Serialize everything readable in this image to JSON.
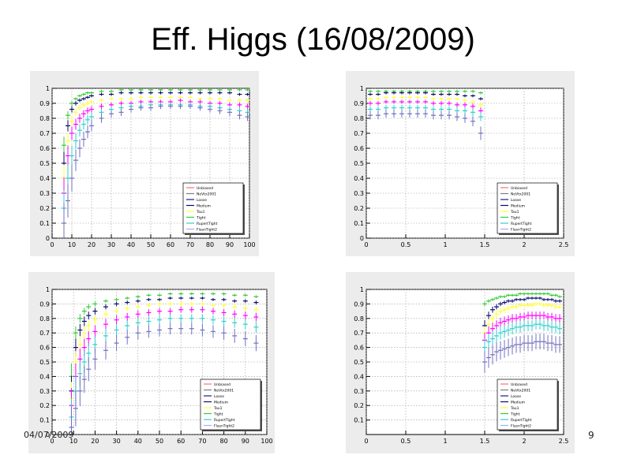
{
  "slide": {
    "title": "Eff. Higgs (16/08/2009)",
    "footer_date": "04/07/2009",
    "page_number": "9"
  },
  "legend_entries": [
    "Unbiased",
    "NoVtx2001",
    "Loose",
    "Medium",
    "Tau1",
    "Tight",
    "RupertTight",
    "FlasnTight2"
  ],
  "series_colors": [
    "#ff6e6e",
    "#7d7d7d",
    "#1a1a8c",
    "#0a0a6e",
    "#ffff33",
    "#33cc33",
    "#33cccc",
    "#aaaaff"
  ],
  "chart_data": [
    {
      "type": "scatter",
      "name": "eff-vs-pt-top",
      "xlim": [
        0,
        100
      ],
      "ylim": [
        0,
        1
      ],
      "xticks": [
        0,
        10,
        20,
        30,
        40,
        50,
        60,
        70,
        80,
        90,
        100
      ],
      "yticks": [
        0,
        0.1,
        0.2,
        0.3,
        0.4,
        0.5,
        0.6,
        0.7,
        0.8,
        0.9,
        1
      ],
      "xtick_labels": [
        "0",
        "10",
        "20",
        "30",
        "40",
        "50",
        "60",
        "70",
        "80",
        "90",
        "100"
      ],
      "ytick_labels": [
        "0",
        "0.1",
        "0.2",
        "0.3",
        "0.4",
        "0.5",
        "0.6",
        "0.7",
        "0.8",
        "0.9",
        "1"
      ],
      "grid": true,
      "legend": "bottom-right",
      "x": [
        6,
        8,
        10,
        12,
        14,
        16,
        18,
        20,
        25,
        30,
        35,
        40,
        45,
        50,
        55,
        60,
        65,
        70,
        75,
        80,
        85,
        90,
        95,
        99
      ],
      "series": [
        {
          "name": "Tight",
          "color": "#33cc33",
          "values": [
            0.62,
            0.82,
            0.9,
            0.93,
            0.95,
            0.96,
            0.97,
            0.97,
            0.98,
            0.98,
            0.99,
            0.99,
            0.99,
            0.99,
            0.99,
            0.99,
            0.99,
            0.99,
            0.99,
            0.99,
            0.99,
            0.99,
            0.99,
            0.99
          ]
        },
        {
          "name": "Medium",
          "color": "#0a0a6e",
          "values": [
            0.5,
            0.75,
            0.86,
            0.9,
            0.92,
            0.93,
            0.94,
            0.95,
            0.96,
            0.96,
            0.97,
            0.97,
            0.97,
            0.97,
            0.97,
            0.97,
            0.97,
            0.97,
            0.97,
            0.97,
            0.97,
            0.97,
            0.96,
            0.96
          ]
        },
        {
          "name": "Tau1",
          "color": "#ffff33",
          "values": [
            0.4,
            0.65,
            0.78,
            0.84,
            0.87,
            0.89,
            0.9,
            0.91,
            0.92,
            0.93,
            0.93,
            0.93,
            0.94,
            0.94,
            0.94,
            0.94,
            0.94,
            0.94,
            0.93,
            0.93,
            0.93,
            0.92,
            0.92,
            0.92
          ]
        },
        {
          "name": "Unbiased",
          "color": "#ff00ff",
          "values": [
            0.3,
            0.55,
            0.7,
            0.76,
            0.8,
            0.83,
            0.85,
            0.86,
            0.88,
            0.89,
            0.9,
            0.9,
            0.91,
            0.91,
            0.91,
            0.91,
            0.92,
            0.91,
            0.91,
            0.9,
            0.9,
            0.89,
            0.89,
            0.88
          ]
        },
        {
          "name": "RupertTight",
          "color": "#33cccc",
          "values": [
            0.2,
            0.4,
            0.55,
            0.65,
            0.72,
            0.76,
            0.79,
            0.81,
            0.84,
            0.86,
            0.87,
            0.88,
            0.88,
            0.89,
            0.89,
            0.89,
            0.89,
            0.89,
            0.88,
            0.88,
            0.87,
            0.86,
            0.85,
            0.84
          ]
        },
        {
          "name": "FlasnTight2",
          "color": "#7070c0",
          "values": [
            0.1,
            0.25,
            0.4,
            0.52,
            0.6,
            0.66,
            0.71,
            0.75,
            0.8,
            0.83,
            0.84,
            0.86,
            0.87,
            0.87,
            0.88,
            0.88,
            0.88,
            0.88,
            0.87,
            0.86,
            0.85,
            0.84,
            0.82,
            0.81
          ]
        }
      ]
    },
    {
      "type": "scatter",
      "name": "eff-vs-eta-top",
      "xlim": [
        0,
        2.5
      ],
      "ylim": [
        0,
        1
      ],
      "xticks": [
        0,
        0.5,
        1,
        1.5,
        2,
        2.5
      ],
      "yticks": [
        0,
        0.1,
        0.2,
        0.3,
        0.4,
        0.5,
        0.6,
        0.7,
        0.8,
        0.9,
        1
      ],
      "xtick_labels": [
        "0",
        "0.5",
        "1",
        "1.5",
        "2",
        "2.5"
      ],
      "ytick_labels": [
        "0",
        "0.1",
        "0.2",
        "0.3",
        "0.4",
        "0.5",
        "0.6",
        "0.7",
        "0.8",
        "0.9",
        "1"
      ],
      "grid": true,
      "legend": "bottom-right",
      "x": [
        0.05,
        0.15,
        0.25,
        0.35,
        0.45,
        0.55,
        0.65,
        0.75,
        0.85,
        0.95,
        1.05,
        1.15,
        1.25,
        1.35,
        1.45
      ],
      "series": [
        {
          "name": "Tight",
          "color": "#33cc33",
          "values": [
            0.98,
            0.98,
            0.98,
            0.98,
            0.98,
            0.98,
            0.98,
            0.98,
            0.98,
            0.98,
            0.98,
            0.98,
            0.98,
            0.98,
            0.97
          ]
        },
        {
          "name": "Medium",
          "color": "#0a0a6e",
          "values": [
            0.96,
            0.96,
            0.97,
            0.97,
            0.97,
            0.97,
            0.97,
            0.97,
            0.96,
            0.96,
            0.96,
            0.96,
            0.95,
            0.95,
            0.93
          ]
        },
        {
          "name": "Tau1",
          "color": "#ffff33",
          "values": [
            0.93,
            0.93,
            0.94,
            0.94,
            0.94,
            0.94,
            0.94,
            0.94,
            0.93,
            0.93,
            0.93,
            0.93,
            0.92,
            0.91,
            0.89
          ]
        },
        {
          "name": "Unbiased",
          "color": "#ff00ff",
          "values": [
            0.9,
            0.9,
            0.91,
            0.91,
            0.91,
            0.91,
            0.91,
            0.91,
            0.9,
            0.9,
            0.9,
            0.89,
            0.89,
            0.88,
            0.85
          ]
        },
        {
          "name": "RupertTight",
          "color": "#33cccc",
          "values": [
            0.86,
            0.86,
            0.87,
            0.87,
            0.87,
            0.87,
            0.87,
            0.87,
            0.86,
            0.86,
            0.86,
            0.85,
            0.85,
            0.84,
            0.81
          ]
        },
        {
          "name": "FlasnTight2",
          "color": "#7070c0",
          "values": [
            0.82,
            0.82,
            0.83,
            0.83,
            0.83,
            0.83,
            0.83,
            0.83,
            0.82,
            0.82,
            0.82,
            0.81,
            0.8,
            0.78,
            0.7
          ]
        }
      ]
    },
    {
      "type": "scatter",
      "name": "eff-vs-pt-bottom",
      "xlim": [
        0,
        100
      ],
      "ylim": [
        0,
        1
      ],
      "xticks": [
        0,
        10,
        20,
        30,
        40,
        50,
        60,
        70,
        80,
        90,
        100
      ],
      "yticks": [
        0,
        0.1,
        0.2,
        0.3,
        0.4,
        0.5,
        0.6,
        0.7,
        0.8,
        0.9,
        1
      ],
      "xtick_labels": [
        "0",
        "10",
        "20",
        "30",
        "40",
        "50",
        "60",
        "70",
        "80",
        "90",
        "100"
      ],
      "ytick_labels": [
        "0",
        "0.1",
        "0.2",
        "0.3",
        "0.4",
        "0.5",
        "0.6",
        "0.7",
        "0.8",
        "0.9",
        "1"
      ],
      "grid": true,
      "legend": "bottom-right",
      "x": [
        9,
        11,
        13,
        15,
        17,
        20,
        25,
        30,
        35,
        40,
        45,
        50,
        55,
        60,
        65,
        70,
        75,
        80,
        85,
        90,
        95
      ],
      "series": [
        {
          "name": "Tight",
          "color": "#33cc33",
          "values": [
            0.4,
            0.7,
            0.8,
            0.85,
            0.88,
            0.9,
            0.92,
            0.93,
            0.94,
            0.95,
            0.96,
            0.96,
            0.97,
            0.97,
            0.97,
            0.97,
            0.97,
            0.97,
            0.96,
            0.96,
            0.95
          ]
        },
        {
          "name": "Medium",
          "color": "#0a0a6e",
          "values": [
            0.3,
            0.6,
            0.72,
            0.78,
            0.82,
            0.85,
            0.88,
            0.9,
            0.91,
            0.92,
            0.93,
            0.93,
            0.94,
            0.94,
            0.94,
            0.94,
            0.93,
            0.93,
            0.92,
            0.92,
            0.91
          ]
        },
        {
          "name": "Tau1",
          "color": "#ffff33",
          "values": [
            0.25,
            0.5,
            0.62,
            0.7,
            0.75,
            0.79,
            0.83,
            0.85,
            0.87,
            0.88,
            0.89,
            0.9,
            0.9,
            0.9,
            0.9,
            0.9,
            0.89,
            0.89,
            0.88,
            0.87,
            0.86
          ]
        },
        {
          "name": "Unbiased",
          "color": "#ff00ff",
          "values": [
            0.2,
            0.4,
            0.52,
            0.6,
            0.66,
            0.71,
            0.76,
            0.79,
            0.81,
            0.83,
            0.84,
            0.85,
            0.85,
            0.86,
            0.86,
            0.86,
            0.85,
            0.84,
            0.83,
            0.82,
            0.81
          ]
        },
        {
          "name": "RupertTight",
          "color": "#33cccc",
          "values": [
            0.12,
            0.3,
            0.42,
            0.5,
            0.56,
            0.62,
            0.68,
            0.72,
            0.75,
            0.77,
            0.78,
            0.79,
            0.8,
            0.8,
            0.8,
            0.8,
            0.79,
            0.78,
            0.77,
            0.76,
            0.74
          ]
        },
        {
          "name": "FlasnTight2",
          "color": "#7070c0",
          "values": [
            0.05,
            0.18,
            0.3,
            0.38,
            0.45,
            0.52,
            0.58,
            0.63,
            0.67,
            0.7,
            0.71,
            0.72,
            0.73,
            0.73,
            0.73,
            0.72,
            0.71,
            0.7,
            0.68,
            0.66,
            0.63
          ]
        }
      ]
    },
    {
      "type": "scatter",
      "name": "eff-vs-eta-bottom",
      "xlim": [
        0,
        2.5
      ],
      "ylim": [
        0,
        1
      ],
      "xticks": [
        0,
        0.5,
        1,
        1.5,
        2,
        2.5
      ],
      "yticks": [
        0.1,
        0.2,
        0.3,
        0.4,
        0.5,
        0.6,
        0.7,
        0.8,
        0.9,
        1
      ],
      "xtick_labels": [
        "0",
        "0.5",
        "1",
        "1.5",
        "2",
        "2.5"
      ],
      "ytick_labels": [
        "0.1",
        "0.2",
        "0.3",
        "0.4",
        "0.5",
        "0.6",
        "0.7",
        "0.8",
        "0.9",
        "1"
      ],
      "grid": true,
      "legend": "bottom-right",
      "x": [
        1.5,
        1.55,
        1.6,
        1.65,
        1.7,
        1.75,
        1.8,
        1.85,
        1.9,
        1.95,
        2.0,
        2.05,
        2.1,
        2.15,
        2.2,
        2.25,
        2.3,
        2.35,
        2.4,
        2.45
      ],
      "series": [
        {
          "name": "Tight",
          "color": "#33cc33",
          "values": [
            0.9,
            0.92,
            0.93,
            0.94,
            0.95,
            0.95,
            0.96,
            0.96,
            0.96,
            0.97,
            0.97,
            0.97,
            0.97,
            0.97,
            0.97,
            0.97,
            0.97,
            0.96,
            0.96,
            0.95
          ]
        },
        {
          "name": "Medium",
          "color": "#0a0a6e",
          "values": [
            0.75,
            0.82,
            0.86,
            0.88,
            0.9,
            0.91,
            0.92,
            0.92,
            0.93,
            0.93,
            0.93,
            0.94,
            0.94,
            0.94,
            0.94,
            0.93,
            0.93,
            0.93,
            0.92,
            0.92
          ]
        },
        {
          "name": "Tau1",
          "color": "#ffff33",
          "values": [
            0.7,
            0.76,
            0.8,
            0.83,
            0.85,
            0.86,
            0.87,
            0.88,
            0.88,
            0.89,
            0.89,
            0.89,
            0.89,
            0.9,
            0.9,
            0.89,
            0.89,
            0.89,
            0.88,
            0.88
          ]
        },
        {
          "name": "Unbiased",
          "color": "#ff00ff",
          "values": [
            0.65,
            0.7,
            0.73,
            0.75,
            0.77,
            0.78,
            0.79,
            0.8,
            0.8,
            0.81,
            0.81,
            0.82,
            0.82,
            0.82,
            0.82,
            0.82,
            0.81,
            0.81,
            0.8,
            0.8
          ]
        },
        {
          "name": "RupertTight",
          "color": "#33cccc",
          "values": [
            0.6,
            0.64,
            0.66,
            0.68,
            0.7,
            0.71,
            0.72,
            0.73,
            0.74,
            0.74,
            0.75,
            0.75,
            0.75,
            0.76,
            0.76,
            0.75,
            0.75,
            0.74,
            0.74,
            0.73
          ]
        },
        {
          "name": "FlasnTight2",
          "color": "#7070c0",
          "values": [
            0.5,
            0.53,
            0.55,
            0.57,
            0.58,
            0.59,
            0.6,
            0.61,
            0.62,
            0.62,
            0.63,
            0.63,
            0.63,
            0.64,
            0.64,
            0.64,
            0.63,
            0.63,
            0.62,
            0.62
          ]
        }
      ]
    }
  ]
}
